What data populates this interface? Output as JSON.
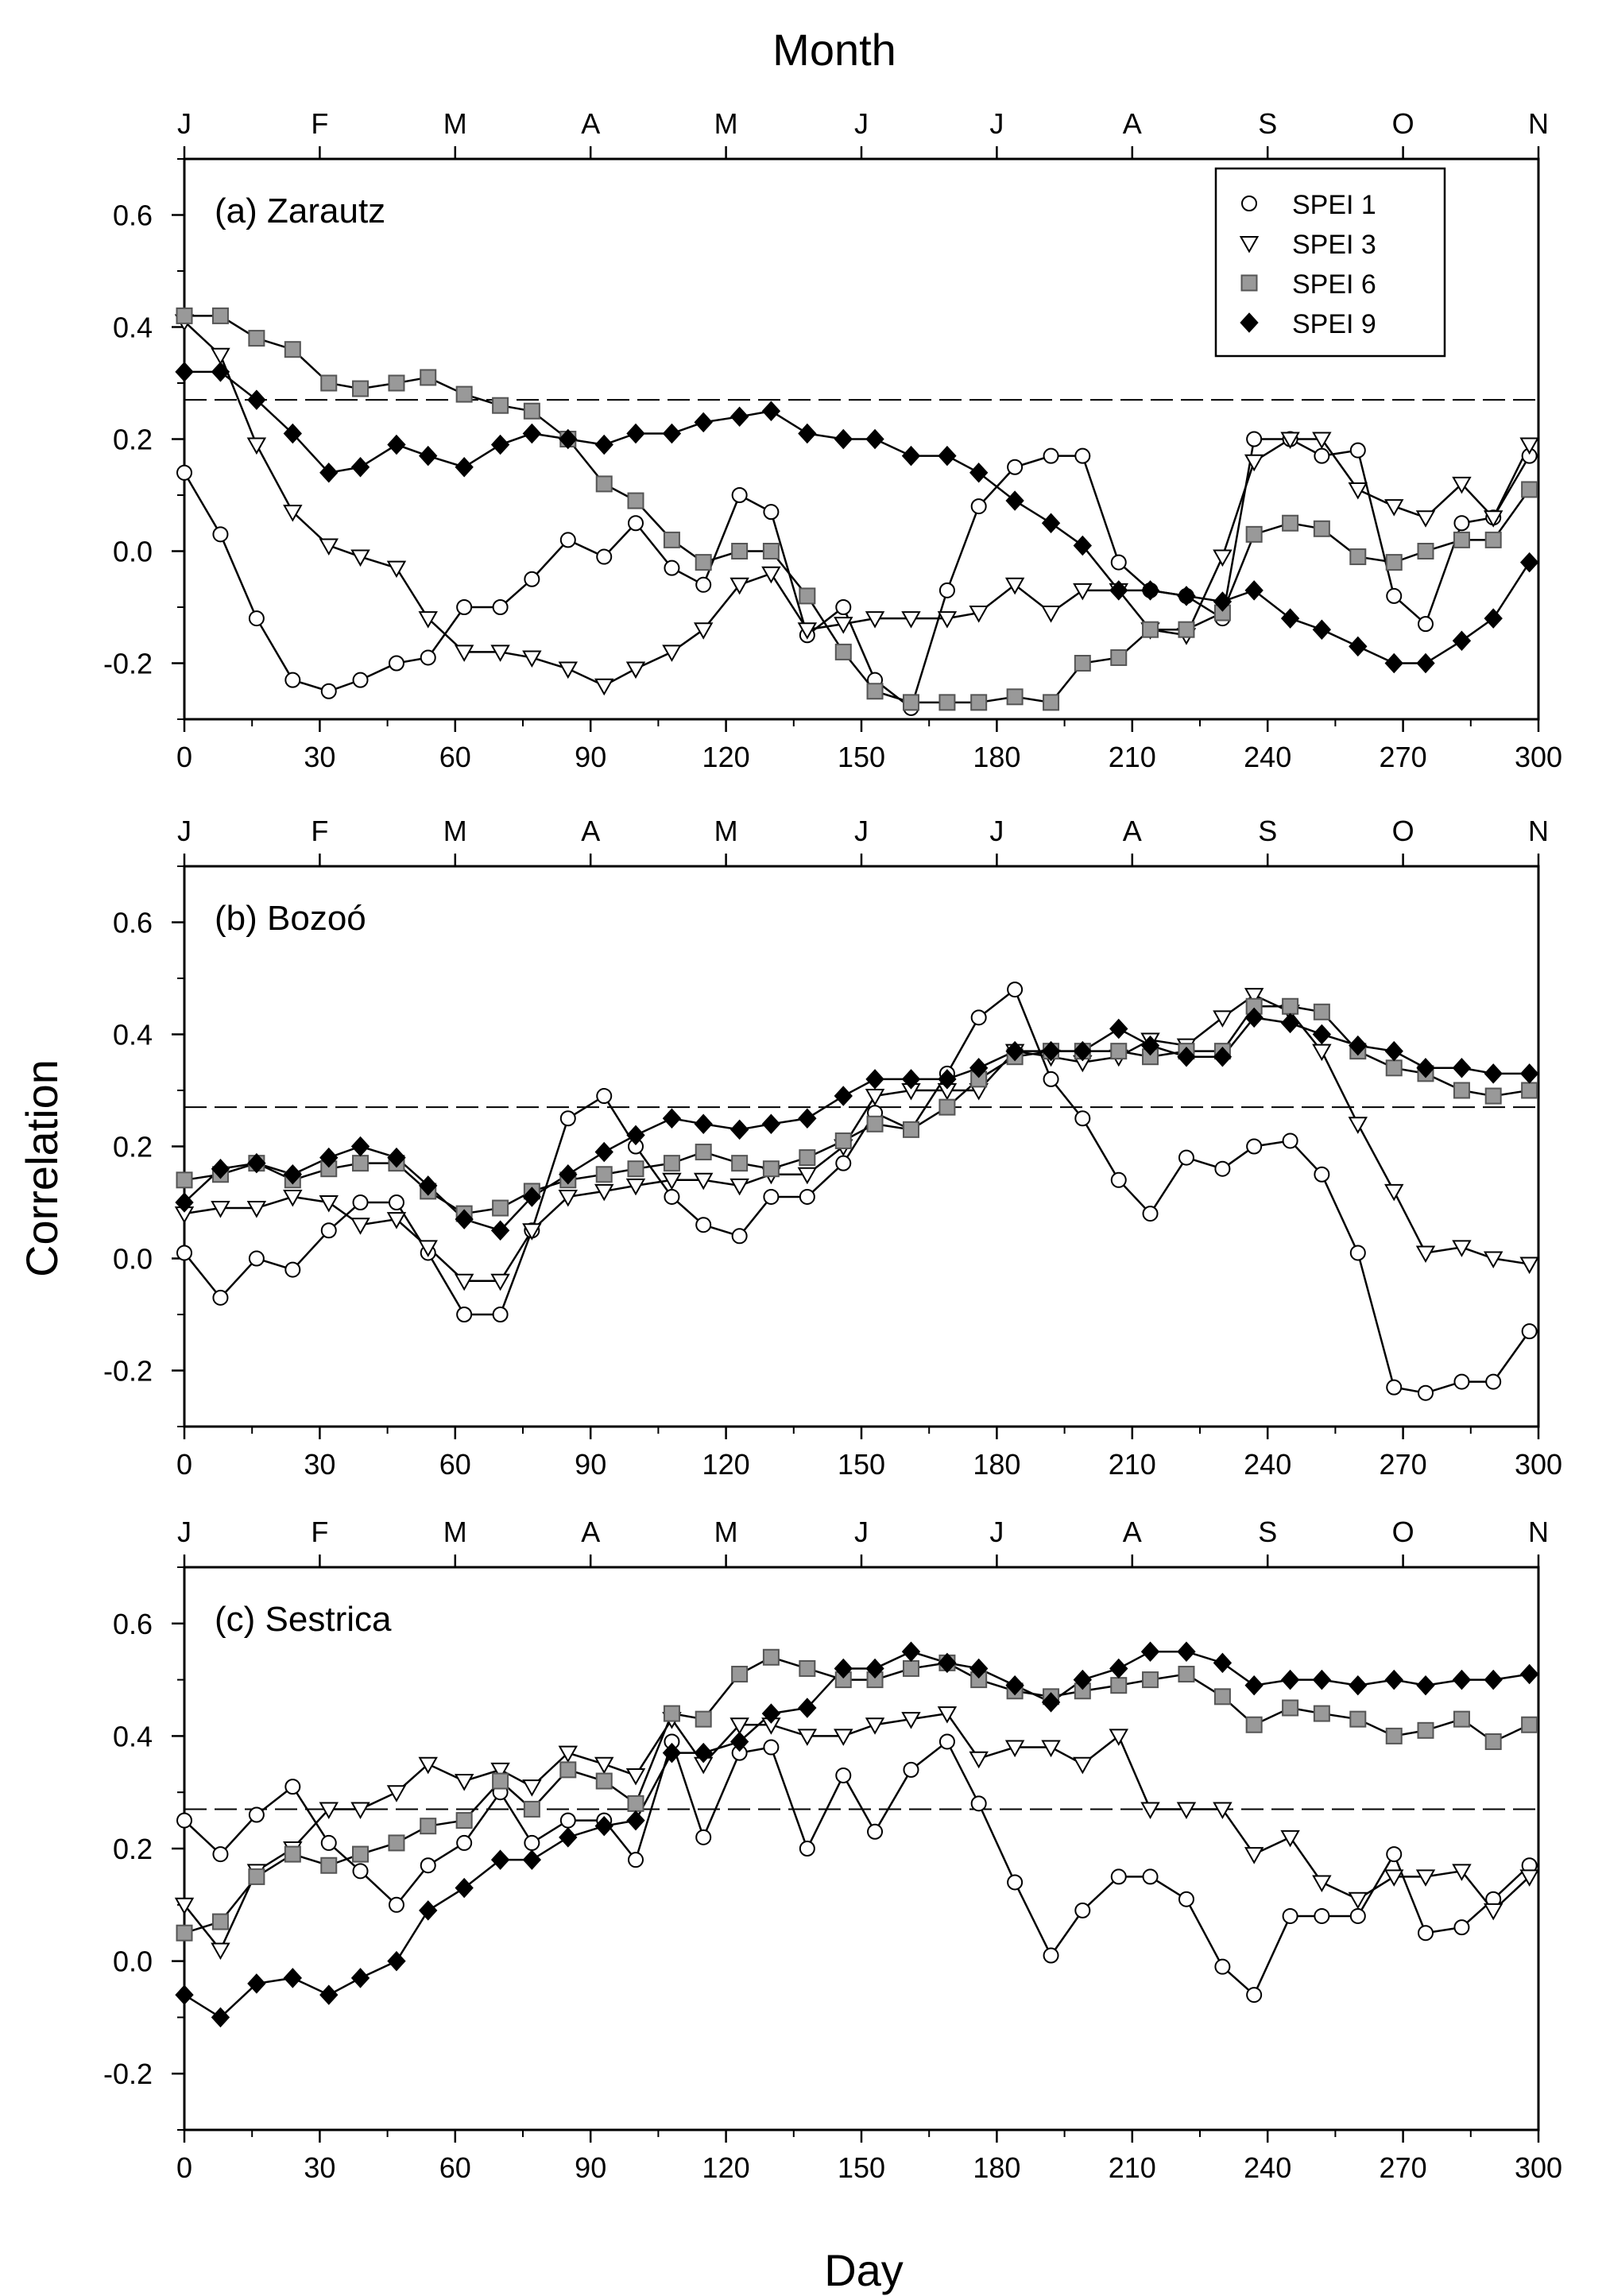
{
  "figure": {
    "top_axis_title": "Month",
    "bottom_axis_title": "Day",
    "y_axis_title": "Correlation"
  },
  "chart_data": [
    {
      "type": "line",
      "panel_label": "(a) Zarautz",
      "xlim": [
        0,
        300
      ],
      "ylim": [
        -0.3,
        0.7
      ],
      "x_ticks": [
        0,
        30,
        60,
        90,
        120,
        150,
        180,
        210,
        240,
        270,
        300
      ],
      "y_ticks": [
        -0.2,
        0.0,
        0.2,
        0.4,
        0.6
      ],
      "y_tick_labels": [
        "-0.2",
        "0.0",
        "0.2",
        "0.4",
        "0.6"
      ],
      "month_ticks": [
        0,
        30,
        60,
        90,
        120,
        150,
        180,
        210,
        240,
        270,
        300
      ],
      "month_labels": [
        "J",
        "F",
        "M",
        "A",
        "M",
        "J",
        "J",
        "A",
        "S",
        "O",
        "N"
      ],
      "threshold": 0.27,
      "x": [
        0,
        8,
        16,
        24,
        32,
        39,
        47,
        54,
        62,
        70,
        77,
        85,
        93,
        100,
        108,
        115,
        123,
        130,
        138,
        146,
        153,
        161,
        169,
        176,
        184,
        192,
        199,
        207,
        214,
        222,
        230,
        237,
        245,
        252,
        260,
        268,
        275,
        283,
        290,
        298
      ],
      "series": [
        {
          "name": "SPEI 1",
          "marker": "circle",
          "values": [
            0.14,
            0.03,
            -0.12,
            -0.23,
            -0.25,
            -0.23,
            -0.2,
            -0.19,
            -0.1,
            -0.1,
            -0.05,
            0.02,
            -0.01,
            0.05,
            -0.03,
            -0.06,
            0.1,
            0.07,
            -0.15,
            -0.1,
            -0.23,
            -0.28,
            -0.07,
            0.08,
            0.15,
            0.17,
            0.17,
            -0.02,
            -0.07,
            -0.08,
            -0.12,
            0.2,
            0.2,
            0.17,
            0.18,
            -0.08,
            -0.13,
            0.05,
            0.06,
            0.17
          ]
        },
        {
          "name": "SPEI 3",
          "marker": "triangle",
          "values": [
            0.41,
            0.35,
            0.19,
            0.07,
            0.01,
            -0.01,
            -0.03,
            -0.12,
            -0.18,
            -0.18,
            -0.19,
            -0.21,
            -0.24,
            -0.21,
            -0.18,
            -0.14,
            -0.06,
            -0.04,
            -0.14,
            -0.13,
            -0.12,
            -0.12,
            -0.12,
            -0.11,
            -0.06,
            -0.11,
            -0.07,
            -0.07,
            -0.14,
            -0.15,
            -0.01,
            0.16,
            0.2,
            0.2,
            0.11,
            0.08,
            0.06,
            0.12,
            0.06,
            0.19
          ]
        },
        {
          "name": "SPEI 6",
          "marker": "square",
          "values": [
            0.42,
            0.42,
            0.38,
            0.36,
            0.3,
            0.29,
            0.3,
            0.31,
            0.28,
            0.26,
            0.25,
            0.2,
            0.12,
            0.09,
            0.02,
            -0.02,
            0.0,
            0.0,
            -0.08,
            -0.18,
            -0.25,
            -0.27,
            -0.27,
            -0.27,
            -0.26,
            -0.27,
            -0.2,
            -0.19,
            -0.14,
            -0.14,
            -0.11,
            0.03,
            0.05,
            0.04,
            -0.01,
            -0.02,
            0.0,
            0.02,
            0.02,
            0.11
          ]
        },
        {
          "name": "SPEI 9",
          "marker": "diamond",
          "values": [
            0.32,
            0.32,
            0.27,
            0.21,
            0.14,
            0.15,
            0.19,
            0.17,
            0.15,
            0.19,
            0.21,
            0.2,
            0.19,
            0.21,
            0.21,
            0.23,
            0.24,
            0.25,
            0.21,
            0.2,
            0.2,
            0.17,
            0.17,
            0.14,
            0.09,
            0.05,
            0.01,
            -0.07,
            -0.07,
            -0.08,
            -0.09,
            -0.07,
            -0.12,
            -0.14,
            -0.17,
            -0.2,
            -0.2,
            -0.16,
            -0.12,
            -0.02
          ]
        }
      ]
    },
    {
      "type": "line",
      "panel_label": "(b) Bozoó",
      "xlim": [
        0,
        300
      ],
      "ylim": [
        -0.3,
        0.7
      ],
      "x_ticks": [
        0,
        30,
        60,
        90,
        120,
        150,
        180,
        210,
        240,
        270,
        300
      ],
      "y_ticks": [
        -0.2,
        0.0,
        0.2,
        0.4,
        0.6
      ],
      "y_tick_labels": [
        "-0.2",
        "0.0",
        "0.2",
        "0.4",
        "0.6"
      ],
      "month_ticks": [
        0,
        30,
        60,
        90,
        120,
        150,
        180,
        210,
        240,
        270,
        300
      ],
      "month_labels": [
        "J",
        "F",
        "M",
        "A",
        "M",
        "J",
        "J",
        "A",
        "S",
        "O",
        "N"
      ],
      "threshold": 0.27,
      "x": [
        0,
        8,
        16,
        24,
        32,
        39,
        47,
        54,
        62,
        70,
        77,
        85,
        93,
        100,
        108,
        115,
        123,
        130,
        138,
        146,
        153,
        161,
        169,
        176,
        184,
        192,
        199,
        207,
        214,
        222,
        230,
        237,
        245,
        252,
        260,
        268,
        275,
        283,
        290,
        298
      ],
      "series": [
        {
          "name": "SPEI 1",
          "marker": "circle",
          "values": [
            0.01,
            -0.07,
            0.0,
            -0.02,
            0.05,
            0.1,
            0.1,
            0.01,
            -0.1,
            -0.1,
            0.05,
            0.25,
            0.29,
            0.2,
            0.11,
            0.06,
            0.04,
            0.11,
            0.11,
            0.17,
            0.26,
            0.23,
            0.33,
            0.43,
            0.48,
            0.32,
            0.25,
            0.14,
            0.08,
            0.18,
            0.16,
            0.2,
            0.21,
            0.15,
            0.01,
            -0.23,
            -0.24,
            -0.22,
            -0.22,
            -0.13
          ]
        },
        {
          "name": "SPEI 3",
          "marker": "triangle",
          "values": [
            0.08,
            0.09,
            0.09,
            0.11,
            0.1,
            0.06,
            0.07,
            0.02,
            -0.04,
            -0.04,
            0.05,
            0.11,
            0.12,
            0.13,
            0.14,
            0.14,
            0.13,
            0.15,
            0.15,
            0.2,
            0.29,
            0.3,
            0.3,
            0.3,
            0.37,
            0.36,
            0.35,
            0.36,
            0.39,
            0.38,
            0.43,
            0.47,
            0.44,
            0.37,
            0.24,
            0.12,
            0.01,
            0.02,
            0.0,
            -0.01
          ]
        },
        {
          "name": "SPEI 6",
          "marker": "square",
          "values": [
            0.14,
            0.15,
            0.17,
            0.14,
            0.16,
            0.17,
            0.17,
            0.12,
            0.08,
            0.09,
            0.12,
            0.14,
            0.15,
            0.16,
            0.17,
            0.19,
            0.17,
            0.16,
            0.18,
            0.21,
            0.24,
            0.23,
            0.27,
            0.32,
            0.36,
            0.37,
            0.37,
            0.37,
            0.36,
            0.37,
            0.37,
            0.45,
            0.45,
            0.44,
            0.37,
            0.34,
            0.33,
            0.3,
            0.29,
            0.3
          ]
        },
        {
          "name": "SPEI 9",
          "marker": "diamond",
          "values": [
            0.1,
            0.16,
            0.17,
            0.15,
            0.18,
            0.2,
            0.18,
            0.13,
            0.07,
            0.05,
            0.11,
            0.15,
            0.19,
            0.22,
            0.25,
            0.24,
            0.23,
            0.24,
            0.25,
            0.29,
            0.32,
            0.32,
            0.32,
            0.34,
            0.37,
            0.37,
            0.37,
            0.41,
            0.38,
            0.36,
            0.36,
            0.43,
            0.42,
            0.4,
            0.38,
            0.37,
            0.34,
            0.34,
            0.33,
            0.33
          ]
        }
      ]
    },
    {
      "type": "line",
      "panel_label": "(c) Sestrica",
      "xlim": [
        0,
        300
      ],
      "ylim": [
        -0.3,
        0.7
      ],
      "x_ticks": [
        0,
        30,
        60,
        90,
        120,
        150,
        180,
        210,
        240,
        270,
        300
      ],
      "y_ticks": [
        -0.2,
        0.0,
        0.2,
        0.4,
        0.6
      ],
      "y_tick_labels": [
        "-0.2",
        "0.0",
        "0.2",
        "0.4",
        "0.6"
      ],
      "month_ticks": [
        0,
        30,
        60,
        90,
        120,
        150,
        180,
        210,
        240,
        270,
        300
      ],
      "month_labels": [
        "J",
        "F",
        "M",
        "A",
        "M",
        "J",
        "J",
        "A",
        "S",
        "O",
        "N"
      ],
      "threshold": 0.27,
      "x": [
        0,
        8,
        16,
        24,
        32,
        39,
        47,
        54,
        62,
        70,
        77,
        85,
        93,
        100,
        108,
        115,
        123,
        130,
        138,
        146,
        153,
        161,
        169,
        176,
        184,
        192,
        199,
        207,
        214,
        222,
        230,
        237,
        245,
        252,
        260,
        268,
        275,
        283,
        290,
        298
      ],
      "series": [
        {
          "name": "SPEI 1",
          "marker": "circle",
          "values": [
            0.25,
            0.19,
            0.26,
            0.31,
            0.21,
            0.16,
            0.1,
            0.17,
            0.21,
            0.3,
            0.21,
            0.25,
            0.25,
            0.18,
            0.39,
            0.22,
            0.37,
            0.38,
            0.2,
            0.33,
            0.23,
            0.34,
            0.39,
            0.28,
            0.14,
            0.01,
            0.09,
            0.15,
            0.15,
            0.11,
            -0.01,
            -0.06,
            0.08,
            0.08,
            0.08,
            0.19,
            0.05,
            0.06,
            0.11,
            0.17
          ]
        },
        {
          "name": "SPEI 3",
          "marker": "triangle",
          "values": [
            0.1,
            0.02,
            0.16,
            0.2,
            0.27,
            0.27,
            0.3,
            0.35,
            0.32,
            0.34,
            0.31,
            0.37,
            0.35,
            0.33,
            0.43,
            0.35,
            0.42,
            0.42,
            0.4,
            0.4,
            0.42,
            0.43,
            0.44,
            0.36,
            0.38,
            0.38,
            0.35,
            0.4,
            0.27,
            0.27,
            0.27,
            0.19,
            0.22,
            0.14,
            0.11,
            0.15,
            0.15,
            0.16,
            0.09,
            0.15
          ]
        },
        {
          "name": "SPEI 6",
          "marker": "square",
          "values": [
            0.05,
            0.07,
            0.15,
            0.19,
            0.17,
            0.19,
            0.21,
            0.24,
            0.25,
            0.32,
            0.27,
            0.34,
            0.32,
            0.28,
            0.44,
            0.43,
            0.51,
            0.54,
            0.52,
            0.5,
            0.5,
            0.52,
            0.53,
            0.5,
            0.48,
            0.47,
            0.48,
            0.49,
            0.5,
            0.51,
            0.47,
            0.42,
            0.45,
            0.44,
            0.43,
            0.4,
            0.41,
            0.43,
            0.39,
            0.42
          ]
        },
        {
          "name": "SPEI 9",
          "marker": "diamond",
          "values": [
            -0.06,
            -0.1,
            -0.04,
            -0.03,
            -0.06,
            -0.03,
            0.0,
            0.09,
            0.13,
            0.18,
            0.18,
            0.22,
            0.24,
            0.25,
            0.37,
            0.37,
            0.39,
            0.44,
            0.45,
            0.52,
            0.52,
            0.55,
            0.53,
            0.52,
            0.49,
            0.46,
            0.5,
            0.52,
            0.55,
            0.55,
            0.53,
            0.49,
            0.5,
            0.5,
            0.49,
            0.5,
            0.49,
            0.5,
            0.5,
            0.51
          ]
        }
      ]
    }
  ],
  "legend": {
    "entries": [
      "SPEI 1",
      "SPEI 3",
      "SPEI 6",
      "SPEI 9"
    ],
    "placement": "top-right of panel (a)"
  }
}
